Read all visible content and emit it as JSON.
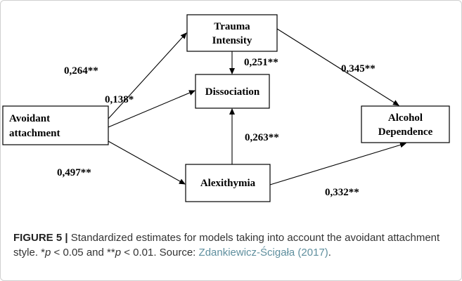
{
  "nodes": [
    {
      "lines": [
        "Trauma",
        "Intensity"
      ]
    },
    {
      "lines": [
        "Dissociation"
      ]
    },
    {
      "lines": [
        "Avoidant",
        "attachment"
      ]
    },
    {
      "lines": [
        "Alcohol",
        "Dependence"
      ]
    },
    {
      "lines": [
        "Alexithymia"
      ]
    }
  ],
  "edges": [
    {
      "label": "0,264**"
    },
    {
      "label": "0,138*"
    },
    {
      "label": "0,251**"
    },
    {
      "label": "0,345**"
    },
    {
      "label": "0,263**"
    },
    {
      "label": "0,497**"
    },
    {
      "label": "0,332**"
    }
  ],
  "caption": {
    "figure_label": "FIGURE 5 |",
    "text1": " Standardized estimates for models taking into account the avoidant attachment style. *",
    "p1": "p",
    "text2": " < 0.05 and **",
    "p2": "p",
    "text3": " < 0.01. Source: ",
    "link": "Zdankiewicz-Ścigała (2017)",
    "text4": "."
  }
}
